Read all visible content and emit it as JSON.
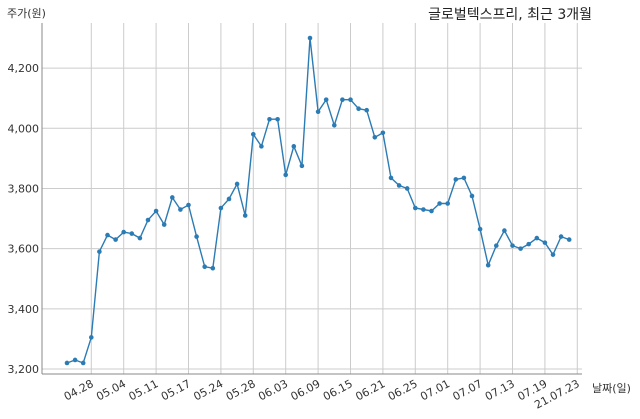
{
  "chart_data": {
    "type": "line",
    "title": "글로벌텍스프리, 최근 3개월",
    "xlabel": "날짜(일)",
    "ylabel": "주가(원)",
    "ylim": [
      3200,
      4300
    ],
    "yticks": [
      3200,
      3400,
      3600,
      3800,
      4000,
      4200
    ],
    "ytick_labels": [
      "3,200",
      "3,400",
      "3,600",
      "3,800",
      "4,000",
      "4,200"
    ],
    "xtick_labels": [
      "04.28",
      "05.04",
      "05.11",
      "05.17",
      "05.24",
      "05.28",
      "06.03",
      "06.09",
      "06.15",
      "06.21",
      "06.25",
      "07.01",
      "07.07",
      "07.13",
      "07.19",
      "21.07.23"
    ],
    "xtick_index": [
      3,
      7,
      11,
      15,
      19,
      23,
      27,
      31,
      35,
      39,
      43,
      47,
      51,
      55,
      59,
      63
    ],
    "grid": true,
    "line_color": "#2b7bb4",
    "series": [
      {
        "values": [
          3220,
          3230,
          3220,
          3305,
          3590,
          3645,
          3630,
          3655,
          3650,
          3635,
          3695,
          3725,
          3680,
          3770,
          3730,
          3745,
          3640,
          3540,
          3535,
          3735,
          3765,
          3815,
          3710,
          3980,
          3940,
          4030,
          4030,
          3845,
          3940,
          3875,
          4300,
          4055,
          4095,
          4010,
          4095,
          4095,
          4065,
          4060,
          3970,
          3985,
          3835,
          3810,
          3800,
          3735,
          3730,
          3725,
          3750,
          3750,
          3830,
          3835,
          3775,
          3665,
          3545,
          3610,
          3660,
          3610,
          3600,
          3615,
          3635,
          3620,
          3580,
          3640,
          3630
        ]
      }
    ]
  }
}
